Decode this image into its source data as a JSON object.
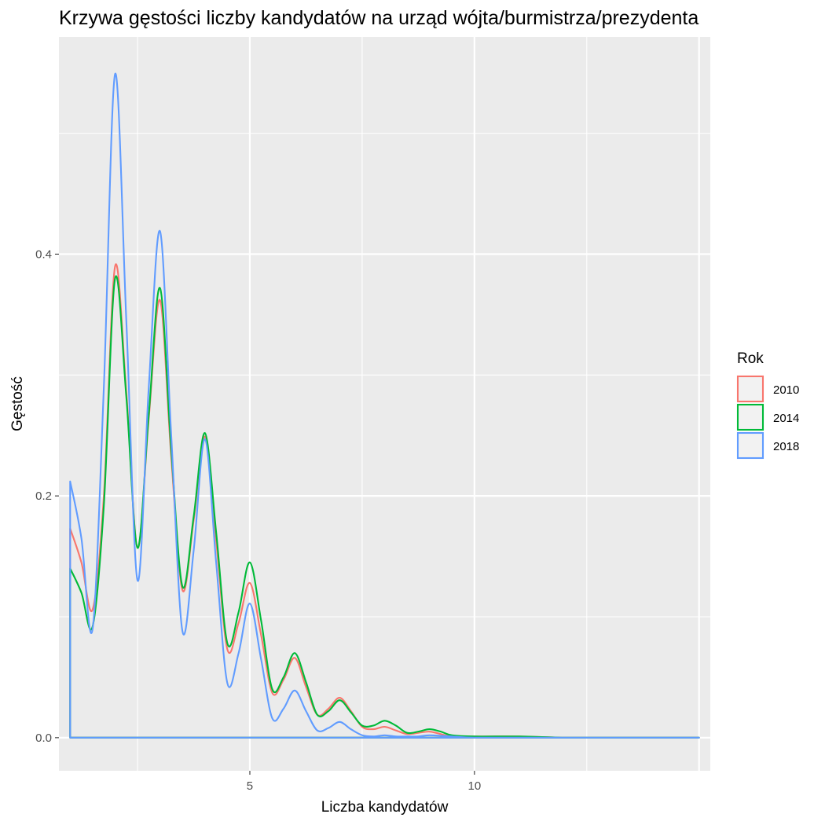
{
  "chart_data": {
    "type": "line",
    "title": "Krzywa gęstości liczby kandydatów na urząd wójta/burmistrza/prezydenta",
    "xlabel": "Liczba kandydatów",
    "ylabel": "Gęstość",
    "xlim": [
      0.75,
      15.25
    ],
    "ylim": [
      -0.0274,
      0.5797
    ],
    "x_ticks": [
      5,
      10
    ],
    "x_tick_labels": [
      "5",
      "10"
    ],
    "y_ticks": [
      0.0,
      0.2,
      0.4
    ],
    "y_tick_labels": [
      "0.0",
      "0.2",
      "0.4"
    ],
    "grid": true,
    "legend": {
      "title": "Rok",
      "position": "right"
    },
    "series": [
      {
        "name": "2010",
        "color": "#F8766D",
        "x": [
          1,
          1.25,
          1.5,
          1.75,
          2,
          2.25,
          2.5,
          2.75,
          3,
          3.25,
          3.5,
          3.75,
          4,
          4.25,
          4.5,
          4.75,
          5,
          5.25,
          5.5,
          5.75,
          6,
          6.25,
          6.5,
          6.75,
          7,
          7.25,
          7.5,
          7.75,
          8,
          8.25,
          8.5,
          8.75,
          9,
          9.25,
          9.5,
          10,
          11,
          12,
          13,
          14,
          15
        ],
        "y": [
          0.173,
          0.145,
          0.106,
          0.2,
          0.39,
          0.286,
          0.157,
          0.264,
          0.362,
          0.232,
          0.122,
          0.18,
          0.249,
          0.163,
          0.073,
          0.095,
          0.128,
          0.085,
          0.037,
          0.048,
          0.066,
          0.042,
          0.019,
          0.024,
          0.033,
          0.022,
          0.009,
          0.007,
          0.009,
          0.006,
          0.003,
          0.004,
          0.005,
          0.003,
          0.001,
          0.001,
          0.001,
          0.0,
          0.0,
          0.0,
          0.0
        ]
      },
      {
        "name": "2014",
        "color": "#00BA38",
        "x": [
          1,
          1.25,
          1.5,
          1.75,
          2,
          2.25,
          2.5,
          2.75,
          3,
          3.25,
          3.5,
          3.75,
          4,
          4.25,
          4.5,
          4.75,
          5,
          5.25,
          5.5,
          5.75,
          6,
          6.25,
          6.5,
          6.75,
          7,
          7.25,
          7.5,
          7.75,
          8,
          8.25,
          8.5,
          8.75,
          9,
          9.25,
          9.5,
          10,
          11,
          12,
          13,
          14,
          15
        ],
        "y": [
          0.14,
          0.12,
          0.092,
          0.192,
          0.38,
          0.282,
          0.157,
          0.267,
          0.372,
          0.238,
          0.125,
          0.183,
          0.252,
          0.17,
          0.078,
          0.104,
          0.145,
          0.097,
          0.04,
          0.05,
          0.07,
          0.046,
          0.019,
          0.022,
          0.031,
          0.021,
          0.01,
          0.01,
          0.014,
          0.01,
          0.004,
          0.005,
          0.007,
          0.005,
          0.002,
          0.001,
          0.001,
          0.0,
          0.0,
          0.0,
          0.0
        ]
      },
      {
        "name": "2018",
        "color": "#619CFF",
        "x": [
          1,
          1.25,
          1.5,
          1.75,
          2,
          2.25,
          2.5,
          2.75,
          3,
          3.25,
          3.5,
          3.75,
          4,
          4.25,
          4.5,
          4.75,
          5,
          5.25,
          5.5,
          5.75,
          6,
          6.25,
          6.5,
          6.75,
          7,
          7.25,
          7.5,
          7.75,
          8,
          8.25,
          8.5,
          8.75,
          9,
          9.5,
          10,
          11,
          12,
          13,
          14,
          15
        ],
        "y": [
          0.212,
          0.165,
          0.09,
          0.29,
          0.549,
          0.345,
          0.13,
          0.29,
          0.419,
          0.25,
          0.088,
          0.155,
          0.247,
          0.145,
          0.045,
          0.07,
          0.111,
          0.065,
          0.016,
          0.024,
          0.039,
          0.022,
          0.006,
          0.008,
          0.013,
          0.007,
          0.002,
          0.001,
          0.002,
          0.001,
          0.001,
          0.001,
          0.002,
          0.001,
          0.0,
          0.0,
          0.0,
          0.0,
          0.0,
          0.0
        ]
      }
    ]
  }
}
